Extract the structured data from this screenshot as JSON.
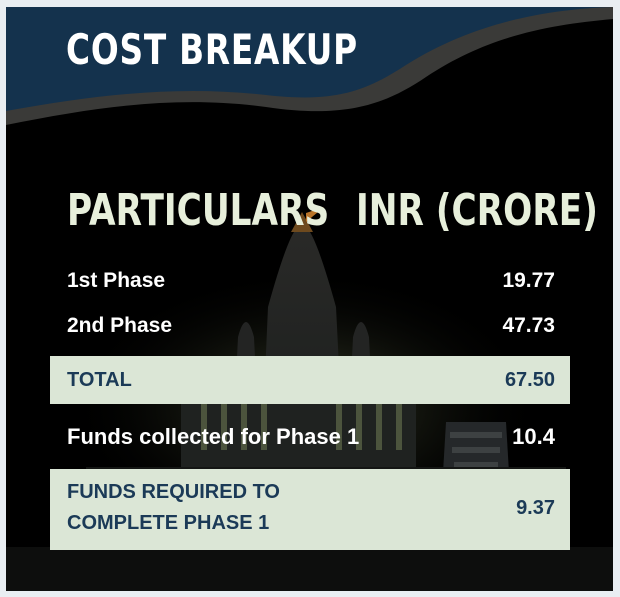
{
  "header": {
    "title": "COST BREAKUP"
  },
  "table": {
    "headers": {
      "particulars": "PARTICULARS",
      "amount": "INR (CRORE)"
    },
    "rows": [
      {
        "label": "1st Phase",
        "value": "19.77"
      },
      {
        "label": "2nd Phase",
        "value": "47.73"
      }
    ],
    "total": {
      "label": "TOTAL",
      "value": "67.50"
    },
    "funds_collected": {
      "label": "Funds collected for Phase 1",
      "value": "10.4"
    },
    "funds_required": {
      "label_line1": "FUNDS REQUIRED TO",
      "label_line2": "COMPLETE PHASE 1",
      "value": "9.37"
    }
  },
  "colors": {
    "header_band": "#14324d",
    "header_accent": "#3a3a38",
    "highlight_bg": "#dbe6d6",
    "highlight_text": "#1b3a57",
    "column_header_text": "#e7efdb"
  }
}
